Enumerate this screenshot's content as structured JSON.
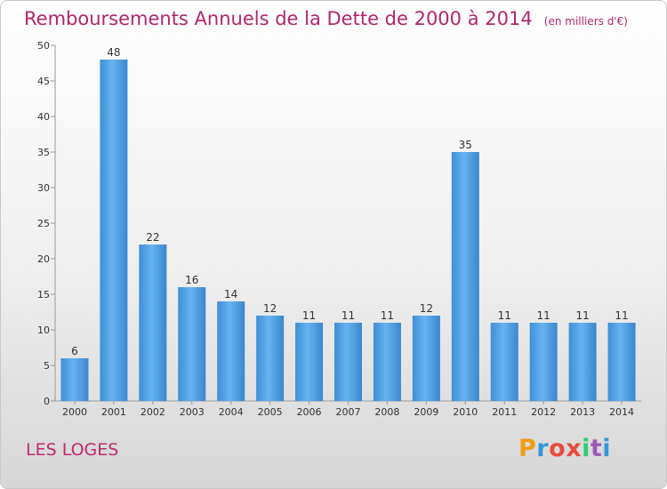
{
  "header": {
    "title": "Remboursements Annuels de la Dette de 2000 à 2014",
    "subtitle": "(en milliers d'€)"
  },
  "footer": {
    "commune": "LES LOGES",
    "logo_letters": [
      "P",
      "r",
      "o",
      "x",
      "i",
      "t",
      "i"
    ],
    "logo_colors": [
      "#f39c12",
      "#3498db",
      "#e74c3c",
      "#e74c3c",
      "#2ecc71",
      "#9b59b6",
      "#3498db"
    ]
  },
  "chart_data": {
    "type": "bar",
    "title": "Remboursements Annuels de la Dette de 2000 à 2014",
    "subtitle": "(en milliers d'€)",
    "categories": [
      "2000",
      "2001",
      "2002",
      "2003",
      "2004",
      "2005",
      "2006",
      "2007",
      "2008",
      "2009",
      "2010",
      "2011",
      "2012",
      "2013",
      "2014"
    ],
    "values": [
      6,
      48,
      22,
      16,
      14,
      12,
      11,
      11,
      11,
      12,
      35,
      11,
      11,
      11,
      11
    ],
    "ylim": [
      0,
      50
    ],
    "yticks": [
      0,
      5,
      10,
      15,
      20,
      25,
      30,
      35,
      40,
      45,
      50
    ],
    "grid": false,
    "bar_color": "#4a9de0"
  }
}
